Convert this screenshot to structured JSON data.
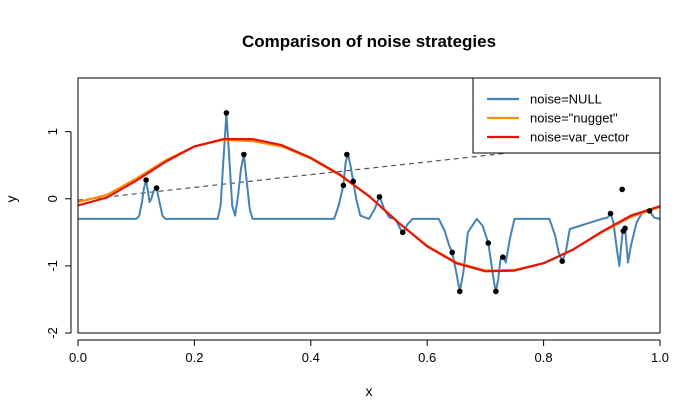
{
  "chart_data": {
    "type": "line",
    "title": "Comparison of noise strategies",
    "xlabel": "x",
    "ylabel": "y",
    "xlim": [
      0.0,
      1.0
    ],
    "ylim": [
      -2.0,
      1.8
    ],
    "x_ticks": [
      "0.0",
      "0.2",
      "0.4",
      "0.6",
      "0.8",
      "1.0"
    ],
    "y_ticks": [
      "-2",
      "-1",
      "0",
      "1"
    ],
    "legend_position": "top-right",
    "grid": false,
    "points": {
      "x": [
        0.117,
        0.135,
        0.255,
        0.285,
        0.456,
        0.462,
        0.473,
        0.518,
        0.558,
        0.643,
        0.656,
        0.705,
        0.718,
        0.73,
        0.832,
        0.915,
        0.935,
        0.937,
        0.94,
        0.982
      ],
      "y": [
        0.28,
        0.16,
        1.28,
        0.66,
        0.2,
        0.66,
        0.26,
        0.03,
        -0.5,
        -0.8,
        -1.38,
        -0.66,
        -1.38,
        -0.87,
        -0.93,
        -0.22,
        0.14,
        -0.48,
        -0.44,
        -0.18
      ]
    },
    "dashed_line": {
      "x": [
        0.0,
        1.0
      ],
      "y": [
        -0.02,
        0.93
      ]
    },
    "series": [
      {
        "name": "noise=NULL",
        "color": "#4682B4",
        "x": [
          0.0,
          0.1,
          0.105,
          0.11,
          0.113,
          0.117,
          0.12,
          0.123,
          0.126,
          0.13,
          0.135,
          0.14,
          0.145,
          0.15,
          0.24,
          0.245,
          0.25,
          0.255,
          0.26,
          0.265,
          0.27,
          0.275,
          0.28,
          0.285,
          0.29,
          0.295,
          0.3,
          0.44,
          0.448,
          0.456,
          0.46,
          0.464,
          0.468,
          0.473,
          0.478,
          0.485,
          0.5,
          0.51,
          0.518,
          0.526,
          0.535,
          0.545,
          0.55,
          0.558,
          0.566,
          0.575,
          0.62,
          0.63,
          0.638,
          0.643,
          0.65,
          0.656,
          0.662,
          0.67,
          0.685,
          0.695,
          0.705,
          0.71,
          0.715,
          0.718,
          0.722,
          0.726,
          0.73,
          0.735,
          0.742,
          0.75,
          0.81,
          0.82,
          0.826,
          0.832,
          0.838,
          0.845,
          0.9,
          0.91,
          0.915,
          0.92,
          0.925,
          0.93,
          0.935,
          0.937,
          0.94,
          0.945,
          0.95,
          0.96,
          0.97,
          0.982,
          0.99,
          1.0
        ],
        "y": [
          -0.3,
          -0.3,
          -0.26,
          -0.05,
          0.15,
          0.28,
          0.12,
          -0.05,
          0.0,
          0.12,
          0.15,
          -0.05,
          -0.25,
          -0.3,
          -0.3,
          -0.1,
          0.6,
          1.27,
          0.6,
          -0.1,
          -0.25,
          0.05,
          0.45,
          0.66,
          0.25,
          -0.15,
          -0.3,
          -0.3,
          -0.1,
          0.2,
          0.55,
          0.66,
          0.5,
          0.25,
          0.0,
          -0.25,
          -0.3,
          -0.15,
          0.04,
          -0.15,
          -0.28,
          -0.3,
          -0.38,
          -0.52,
          -0.38,
          -0.3,
          -0.3,
          -0.48,
          -0.7,
          -0.8,
          -1.1,
          -1.38,
          -1.1,
          -0.5,
          -0.3,
          -0.4,
          -0.66,
          -0.95,
          -1.25,
          -1.38,
          -1.2,
          -0.9,
          -0.85,
          -0.95,
          -0.6,
          -0.3,
          -0.3,
          -0.55,
          -0.8,
          -0.93,
          -0.8,
          -0.45,
          -0.3,
          -0.28,
          -0.22,
          -0.35,
          -0.7,
          -1.0,
          -0.55,
          -0.48,
          -0.44,
          -0.95,
          -0.7,
          -0.35,
          -0.2,
          -0.18,
          -0.28,
          -0.3
        ]
      },
      {
        "name": "noise=\"nugget\"",
        "color": "#FF8C00",
        "x": [
          0.0,
          0.05,
          0.1,
          0.15,
          0.2,
          0.25,
          0.3,
          0.35,
          0.4,
          0.45,
          0.5,
          0.55,
          0.6,
          0.65,
          0.7,
          0.75,
          0.8,
          0.85,
          0.9,
          0.95,
          1.0
        ],
        "y": [
          -0.05,
          0.06,
          0.3,
          0.57,
          0.78,
          0.88,
          0.86,
          0.78,
          0.6,
          0.35,
          0.04,
          -0.35,
          -0.7,
          -0.95,
          -1.07,
          -1.06,
          -0.96,
          -0.76,
          -0.5,
          -0.27,
          -0.12
        ]
      },
      {
        "name": "noise=var_vector",
        "color": "#E3140C",
        "x": [
          0.0,
          0.05,
          0.1,
          0.15,
          0.2,
          0.25,
          0.3,
          0.35,
          0.4,
          0.45,
          0.5,
          0.55,
          0.6,
          0.65,
          0.7,
          0.75,
          0.8,
          0.85,
          0.9,
          0.95,
          1.0
        ],
        "y": [
          -0.1,
          0.02,
          0.27,
          0.55,
          0.78,
          0.89,
          0.89,
          0.8,
          0.61,
          0.36,
          0.04,
          -0.35,
          -0.71,
          -0.96,
          -1.08,
          -1.07,
          -0.96,
          -0.76,
          -0.49,
          -0.25,
          -0.11
        ]
      }
    ]
  }
}
